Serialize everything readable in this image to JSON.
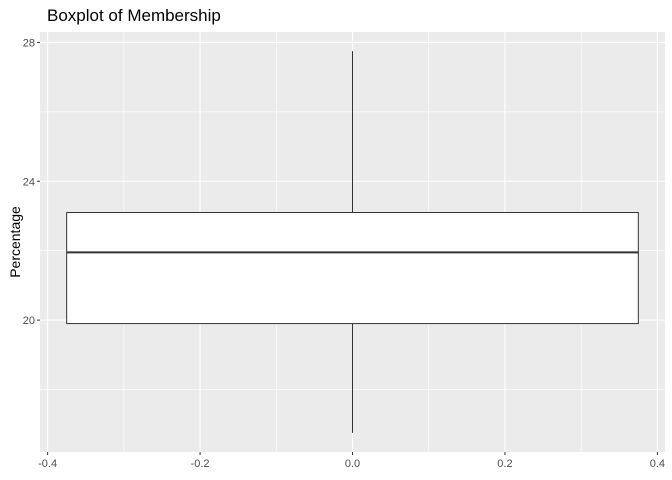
{
  "chart_data": {
    "type": "boxplot",
    "title": "Boxplot of Membership",
    "xlabel": "",
    "ylabel": "Percentage",
    "x_ticks": [
      -0.4,
      -0.2,
      0.0,
      0.2,
      0.4
    ],
    "x_tick_labels": [
      "-0.4",
      "-0.2",
      "0.0",
      "0.2",
      "0.4"
    ],
    "y_ticks": [
      20,
      24,
      28
    ],
    "y_tick_labels": [
      "20",
      "24",
      "28"
    ],
    "xlim": [
      -0.41,
      0.41
    ],
    "ylim": [
      16.2,
      28.3
    ],
    "box": {
      "x_center": 0.0,
      "x_min": -0.375,
      "x_max": 0.375,
      "q1": 19.9,
      "median": 21.95,
      "q3": 23.1,
      "whisker_low": 16.75,
      "whisker_high": 27.75
    },
    "grid": true,
    "legend": "none",
    "panel_background": "#ebebeb",
    "grid_color": "#ffffff",
    "box_fill": "#ffffff",
    "box_stroke": "#333333"
  }
}
